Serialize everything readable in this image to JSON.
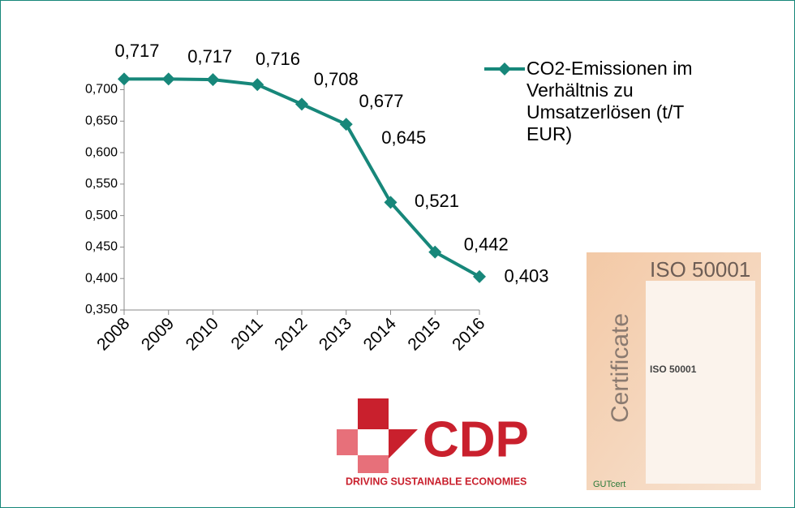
{
  "chart_data": {
    "type": "line",
    "categories": [
      "2008",
      "2009",
      "2010",
      "2011",
      "2012",
      "2013",
      "2014",
      "2015",
      "2016"
    ],
    "series": [
      {
        "name": "CO2-Emissionen im Verhältnis zu Umsatzerlösen (t/T EUR)",
        "color": "#17877a",
        "values": [
          0.717,
          0.717,
          0.716,
          0.708,
          0.677,
          0.645,
          0.521,
          0.442,
          0.403
        ],
        "value_labels": [
          "0,717",
          "0,717",
          "0,716",
          "0,708",
          "0,677",
          "0,645",
          "0,521",
          "0,442",
          "0,403"
        ]
      }
    ],
    "ylim": [
      0.35,
      0.7
    ],
    "yticks": [
      {
        "value": 0.35,
        "label": "0,350"
      },
      {
        "value": 0.4,
        "label": "0,400"
      },
      {
        "value": 0.45,
        "label": "0,450"
      },
      {
        "value": 0.5,
        "label": "0,500"
      },
      {
        "value": 0.55,
        "label": "0,550"
      },
      {
        "value": 0.6,
        "label": "0,600"
      },
      {
        "value": 0.65,
        "label": "0,650"
      },
      {
        "value": 0.7,
        "label": "0,700"
      }
    ],
    "grid": false,
    "legend": "upper right"
  },
  "cdp_logo": {
    "name": "CDP",
    "tagline": "DRIVING SUSTAINABLE ECONOMIES"
  },
  "certificate": {
    "title": "ISO 50001",
    "side_label": "Certificate",
    "standard": "ISO 50001",
    "issuer": "GUTcert"
  }
}
